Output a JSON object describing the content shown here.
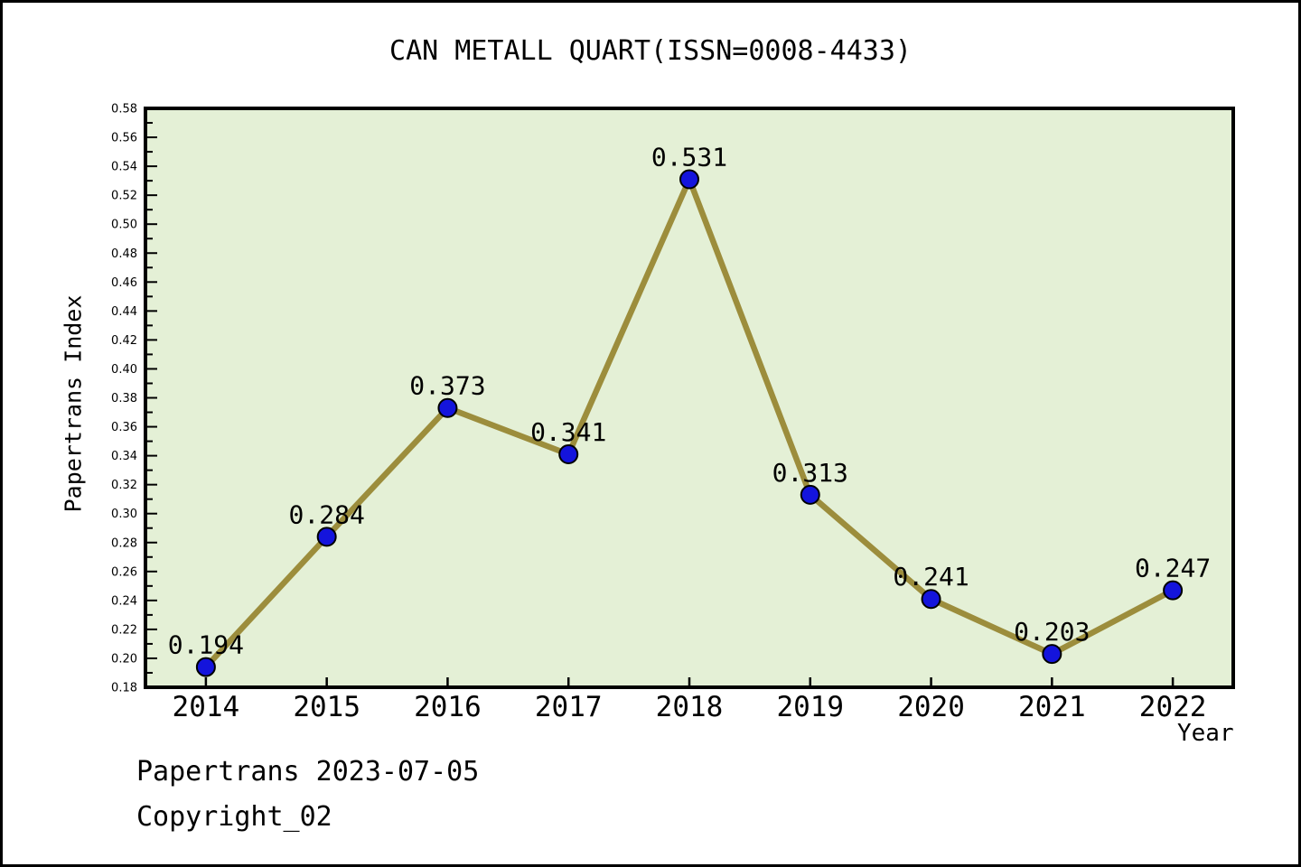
{
  "page": {
    "title": "CAN METALL QUART(ISSN=0008-4433)",
    "footer": [
      "Papertrans 2023-07-05",
      "Copyright_02"
    ]
  },
  "chart_data": {
    "type": "line",
    "title": "CAN METALL QUART(ISSN=0008-4433)",
    "xlabel": "Year",
    "ylabel": "Papertrans Index",
    "categories": [
      "2014",
      "2015",
      "2016",
      "2017",
      "2018",
      "2019",
      "2020",
      "2021",
      "2022"
    ],
    "series": [
      {
        "name": "Papertrans Index",
        "values": [
          0.194,
          0.284,
          0.373,
          0.341,
          0.531,
          0.313,
          0.241,
          0.203,
          0.247
        ]
      }
    ],
    "point_labels": [
      "0.194",
      "0.284",
      "0.373",
      "0.341",
      "0.531",
      "0.313",
      "0.241",
      "0.203",
      "0.247"
    ],
    "ylim": [
      0.18,
      0.58
    ],
    "ytick_major_step": 0.02,
    "ytick_minor_step": 0.01,
    "grid": false,
    "legend_position": "none",
    "colors": {
      "plot_background": "#e4f0d6",
      "line": "#9c8d3c",
      "marker_fill": "#1414dc",
      "marker_edge": "#000000",
      "axis": "#000000",
      "page_background": "#ffffff"
    }
  }
}
